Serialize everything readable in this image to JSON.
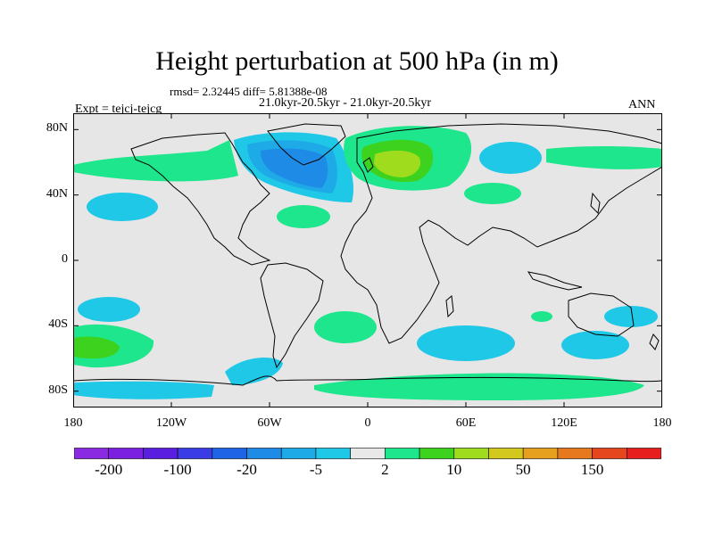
{
  "title": "Height perturbation at 500 hPa (in m)",
  "stats": "rmsd= 2.32445 diff= 5.81388e-08",
  "period": "21.0kyr-20.5kyr - 21.0kyr-20.5kyr",
  "expt": "Expt = tejcj-tejcg",
  "season": "ANN",
  "y_ticks": [
    {
      "label": "80N",
      "lat": 80
    },
    {
      "label": "40N",
      "lat": 40
    },
    {
      "label": "0",
      "lat": 0
    },
    {
      "label": "40S",
      "lat": -40
    },
    {
      "label": "80S",
      "lat": -80
    }
  ],
  "x_ticks": [
    {
      "label": "180",
      "lon": -180
    },
    {
      "label": "120W",
      "lon": -120
    },
    {
      "label": "60W",
      "lon": -60
    },
    {
      "label": "0",
      "lon": 0
    },
    {
      "label": "60E",
      "lon": 60
    },
    {
      "label": "120E",
      "lon": 120
    },
    {
      "label": "180",
      "lon": 180
    }
  ],
  "colorbar": {
    "colors": [
      "#8a2be2",
      "#7b20e0",
      "#5a1ee0",
      "#3a3ce6",
      "#1e64e6",
      "#1e8ce6",
      "#1eaae6",
      "#1ec8e6",
      "#e8e8e8",
      "#1ee68c",
      "#3cd21e",
      "#a0dc1e",
      "#d2c81e",
      "#e6a01e",
      "#e6781e",
      "#e6461e",
      "#e61e1e"
    ],
    "labels": [
      {
        "text": "-200",
        "slot": 1
      },
      {
        "text": "-100",
        "slot": 3
      },
      {
        "text": "-20",
        "slot": 5
      },
      {
        "text": "-5",
        "slot": 7
      },
      {
        "text": "2",
        "slot": 9
      },
      {
        "text": "10",
        "slot": 11
      },
      {
        "text": "50",
        "slot": 13
      },
      {
        "text": "150",
        "slot": 15
      }
    ]
  },
  "map_colors": {
    "background": "#e6e6e6",
    "neg_weak": "#1ec8e6",
    "neg_mid": "#1eaae6",
    "neg_strong": "#1e8ce6",
    "neg_stronger": "#1e64e6",
    "pos_weak": "#1ee68c",
    "pos_mid": "#3cd21e",
    "pos_strong": "#a0dc1e"
  }
}
